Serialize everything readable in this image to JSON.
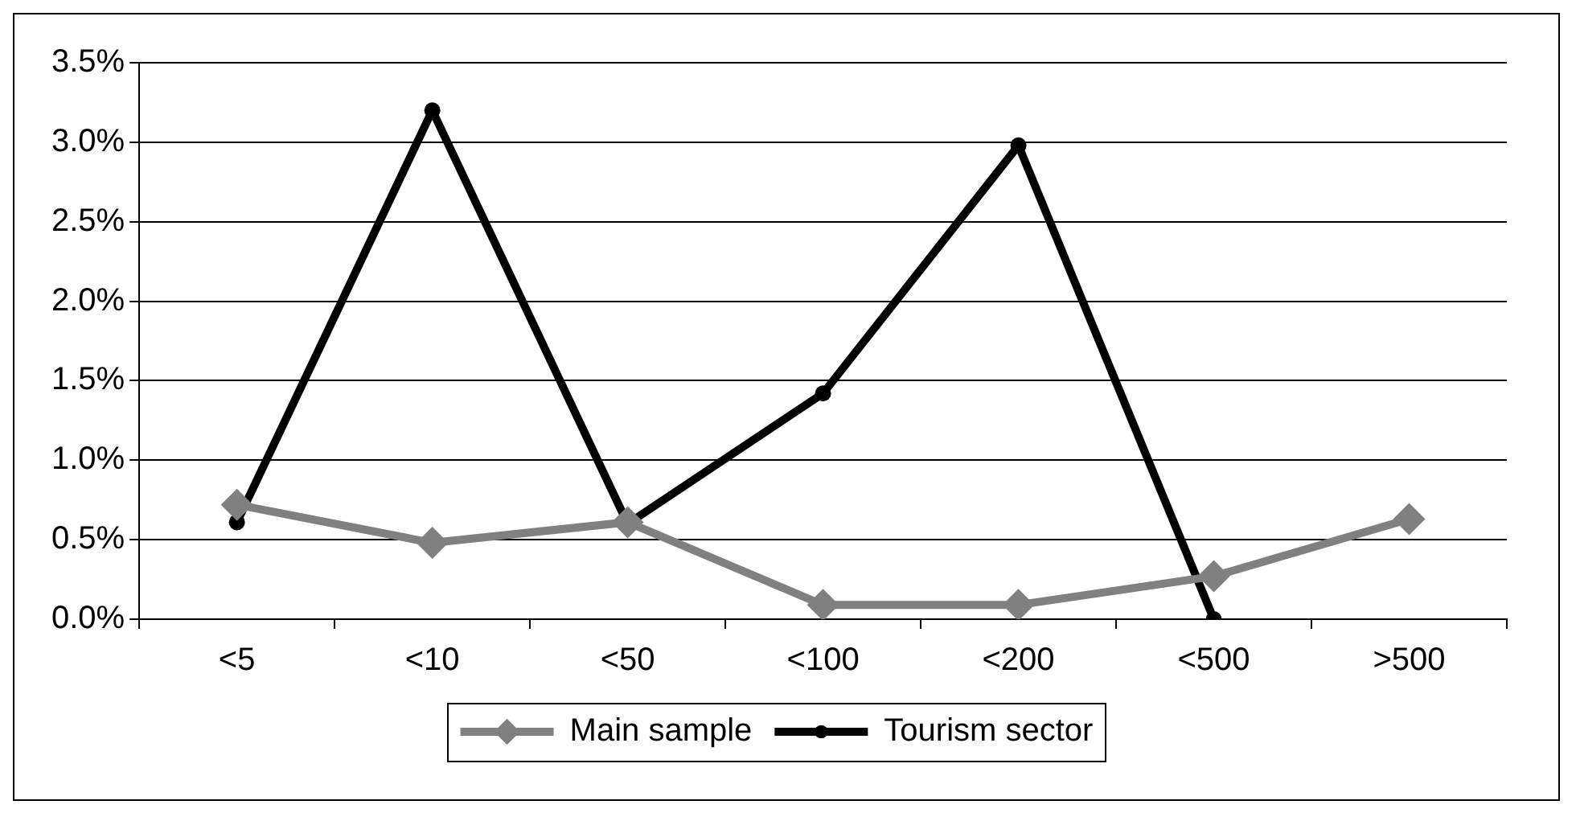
{
  "chart_data": {
    "type": "line",
    "categories": [
      "<5",
      "<10",
      "<50",
      "<100",
      "<200",
      "<500",
      ">500"
    ],
    "series": [
      {
        "name": "Main sample",
        "color": "#808080",
        "marker": "diamond",
        "values": [
          0.72,
          0.48,
          0.61,
          0.09,
          0.09,
          0.27,
          0.63
        ]
      },
      {
        "name": "Tourism sector",
        "color": "#000000",
        "marker": "circle",
        "values": [
          0.61,
          3.2,
          0.6,
          1.42,
          2.98,
          0.0,
          null
        ]
      }
    ],
    "ylim": [
      0,
      3.5
    ],
    "yticks": [
      {
        "value": 0,
        "label": "0.0%"
      },
      {
        "value": 0.5,
        "label": "0.5%"
      },
      {
        "value": 1,
        "label": "1.0%"
      },
      {
        "value": 1.5,
        "label": "1.5%"
      },
      {
        "value": 2,
        "label": "2.0%"
      },
      {
        "value": 2.5,
        "label": "2.5%"
      },
      {
        "value": 3,
        "label": "3.0%"
      },
      {
        "value": 3.5,
        "label": "3.5%"
      }
    ],
    "grid": "y",
    "legend": "bottom",
    "line_style": "solid"
  }
}
